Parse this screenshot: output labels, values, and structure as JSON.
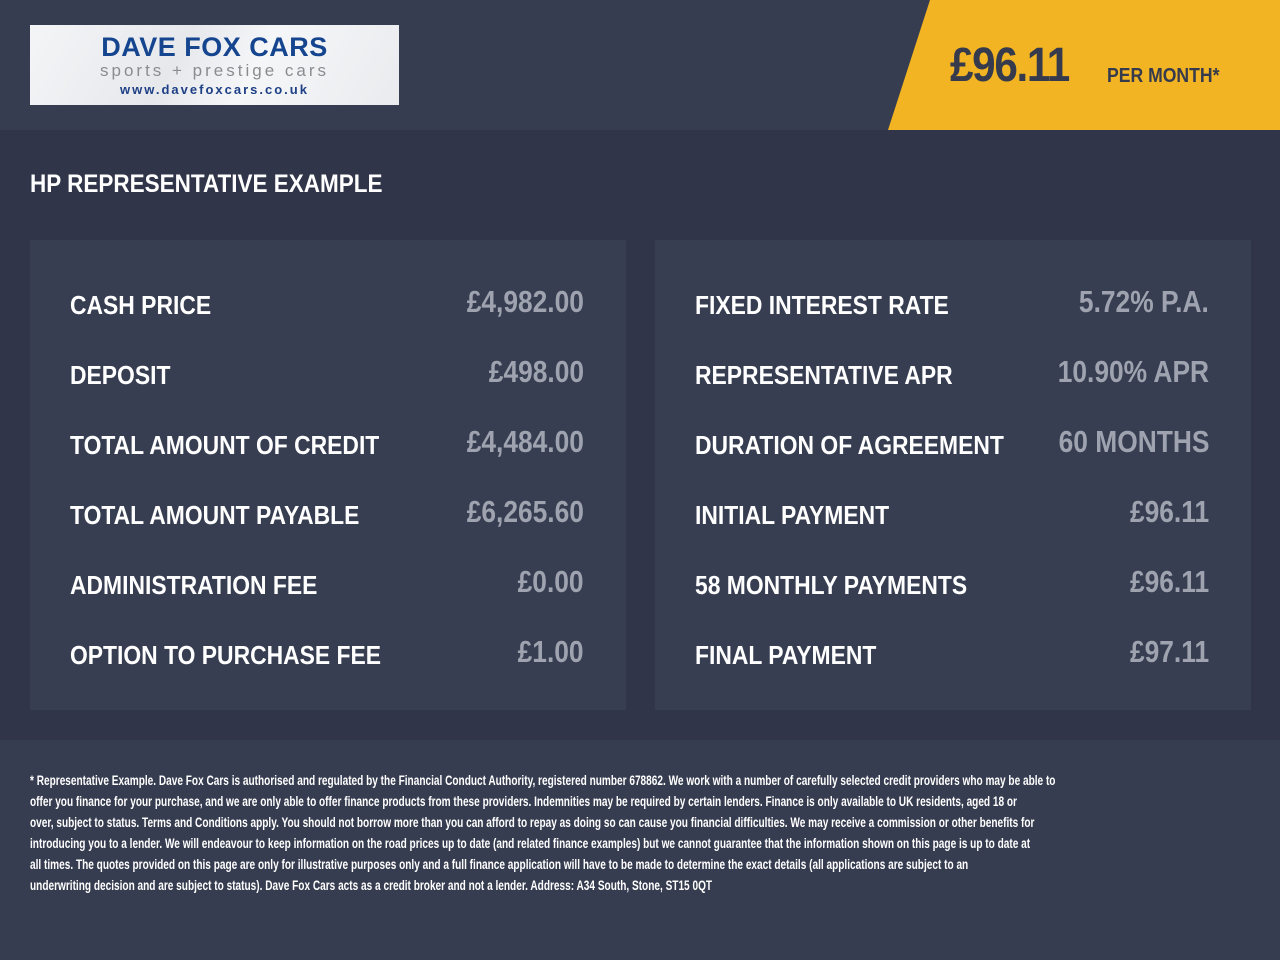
{
  "header": {
    "logo": {
      "name": "DAVE FOX CARS",
      "tagline": "sports + prestige cars",
      "url": "www.davefoxcars.co.uk"
    },
    "monthly_price": "£96.11",
    "per_month_label": "PER MONTH*",
    "accent_color": "#f2b422"
  },
  "title": "HP REPRESENTATIVE EXAMPLE",
  "left_panel": [
    {
      "label": "CASH PRICE",
      "value": "£4,982.00"
    },
    {
      "label": "DEPOSIT",
      "value": "£498.00"
    },
    {
      "label": "TOTAL AMOUNT OF CREDIT",
      "value": "£4,484.00"
    },
    {
      "label": "TOTAL AMOUNT PAYABLE",
      "value": "£6,265.60"
    },
    {
      "label": "ADMINISTRATION FEE",
      "value": "£0.00"
    },
    {
      "label": "OPTION TO PURCHASE FEE",
      "value": "£1.00"
    }
  ],
  "right_panel": [
    {
      "label": "FIXED INTEREST RATE",
      "value": "5.72% P.A."
    },
    {
      "label": "REPRESENTATIVE APR",
      "value": "10.90% APR"
    },
    {
      "label": "DURATION OF AGREEMENT",
      "value": "60 MONTHS"
    },
    {
      "label": "INITIAL PAYMENT",
      "value": "£96.11"
    },
    {
      "label": "58 MONTHLY PAYMENTS",
      "value": "£96.11"
    },
    {
      "label": "FINAL PAYMENT",
      "value": "£97.11"
    }
  ],
  "footer_lines": [
    "* Representative Example. Dave Fox Cars is authorised and regulated by the Financial Conduct Authority, registered number 678862. We work with a number of carefully selected credit providers who may be able to",
    "offer you finance for your purchase, and we are only able to offer finance products from these providers. Indemnities may be required by certain lenders. Finance is only available to UK residents, aged 18 or",
    "over, subject to status. Terms and Conditions apply. You should not borrow more than you can afford to repay as doing so can cause you financial difficulties. We may receive a commission or other benefits for",
    "introducing you to a lender. We will endeavour to keep information on the road prices up to date (and related finance examples) but we cannot guarantee that the information shown on this page is up to date at",
    "all times. The quotes provided on this page are only for illustrative purposes only and a full finance application will have to be made to determine the exact details (all applications are subject to an",
    "underwriting decision and are subject to status). Dave Fox Cars acts as a credit broker and not a lender. Address: A34 South, Stone, ST15 0QT"
  ]
}
